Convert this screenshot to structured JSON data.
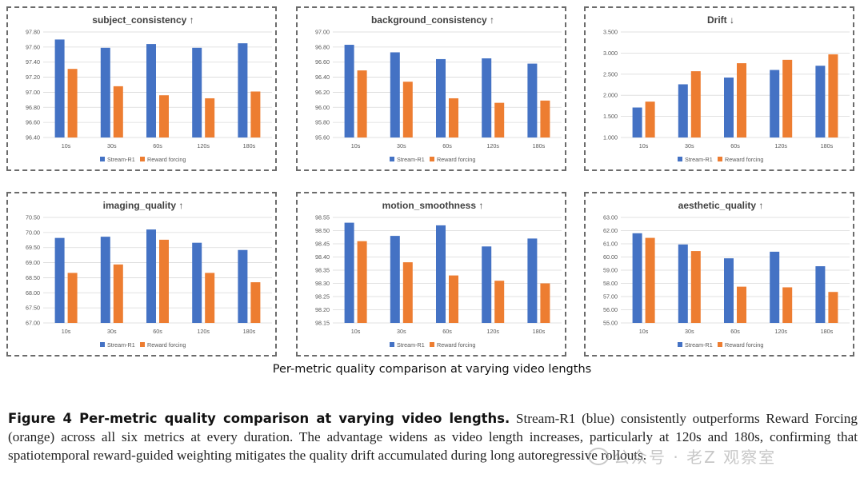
{
  "colors": {
    "stream": "#4472C4",
    "reward": "#ED7D31",
    "grid": "#d9d9d9",
    "axis_text": "#595959"
  },
  "legend": [
    "Stream-R1",
    "Reward forcing"
  ],
  "chart_data": [
    {
      "type": "bar",
      "title": "subject_consistency ↑",
      "categories": [
        "10s",
        "30s",
        "60s",
        "120s",
        "180s"
      ],
      "series": [
        {
          "name": "Stream-R1",
          "values": [
            97.7,
            97.59,
            97.64,
            97.59,
            97.65
          ]
        },
        {
          "name": "Reward forcing",
          "values": [
            97.31,
            97.08,
            96.96,
            96.92,
            97.01
          ]
        }
      ],
      "ylim": [
        96.4,
        97.8
      ],
      "yticks": [
        "97.80",
        "97.60",
        "97.40",
        "97.20",
        "97.00",
        "96.80",
        "96.60",
        "96.40"
      ],
      "grid": true,
      "legend": "bottom"
    },
    {
      "type": "bar",
      "title": "background_consistency ↑",
      "categories": [
        "10s",
        "30s",
        "60s",
        "120s",
        "180s"
      ],
      "series": [
        {
          "name": "Stream-R1",
          "values": [
            96.83,
            96.73,
            96.64,
            96.65,
            96.58
          ]
        },
        {
          "name": "Reward forcing",
          "values": [
            96.49,
            96.34,
            96.12,
            96.06,
            96.09
          ]
        }
      ],
      "ylim": [
        95.6,
        97.0
      ],
      "yticks": [
        "97.00",
        "96.80",
        "96.60",
        "96.40",
        "96.20",
        "96.00",
        "95.80",
        "95.60"
      ],
      "grid": true,
      "legend": "bottom"
    },
    {
      "type": "bar",
      "title": "Drift ↓",
      "categories": [
        "10s",
        "30s",
        "60s",
        "120s",
        "180s"
      ],
      "series": [
        {
          "name": "Stream-R1",
          "values": [
            1.71,
            2.26,
            2.42,
            2.6,
            2.7
          ]
        },
        {
          "name": "Reward forcing",
          "values": [
            1.85,
            2.57,
            2.76,
            2.84,
            2.97
          ]
        }
      ],
      "ylim": [
        1.0,
        3.5
      ],
      "yticks": [
        "3.500",
        "3.000",
        "2.500",
        "2.000",
        "1.500",
        "1.000"
      ],
      "grid": true,
      "legend": "bottom"
    },
    {
      "type": "bar",
      "title": "imaging_quality ↑",
      "categories": [
        "10s",
        "30s",
        "60s",
        "120s",
        "180s"
      ],
      "series": [
        {
          "name": "Stream-R1",
          "values": [
            69.82,
            69.86,
            70.1,
            69.66,
            69.42
          ]
        },
        {
          "name": "Reward forcing",
          "values": [
            68.66,
            68.94,
            69.76,
            68.66,
            68.35
          ]
        }
      ],
      "ylim": [
        67.0,
        70.5
      ],
      "yticks": [
        "70.50",
        "70.00",
        "69.50",
        "69.00",
        "68.50",
        "68.00",
        "67.50",
        "67.00"
      ],
      "grid": true,
      "legend": "bottom"
    },
    {
      "type": "bar",
      "title": "motion_smoothness ↑",
      "categories": [
        "10s",
        "30s",
        "60s",
        "120s",
        "180s"
      ],
      "series": [
        {
          "name": "Stream-R1",
          "values": [
            98.53,
            98.48,
            98.52,
            98.44,
            98.47
          ]
        },
        {
          "name": "Reward forcing",
          "values": [
            98.46,
            98.38,
            98.33,
            98.31,
            98.3
          ]
        }
      ],
      "ylim": [
        98.15,
        98.55
      ],
      "yticks": [
        "98.55",
        "98.50",
        "98.45",
        "98.40",
        "98.35",
        "98.30",
        "98.25",
        "98.20",
        "98.15"
      ],
      "grid": true,
      "legend": "bottom"
    },
    {
      "type": "bar",
      "title": "aesthetic_quality ↑",
      "categories": [
        "10s",
        "30s",
        "60s",
        "120s",
        "180s"
      ],
      "series": [
        {
          "name": "Stream-R1",
          "values": [
            61.8,
            60.95,
            59.9,
            60.4,
            59.3
          ]
        },
        {
          "name": "Reward forcing",
          "values": [
            61.45,
            60.45,
            57.75,
            57.7,
            57.35
          ]
        }
      ],
      "ylim": [
        55.0,
        63.0
      ],
      "yticks": [
        "63.00",
        "62.00",
        "61.00",
        "60.00",
        "59.00",
        "58.00",
        "57.00",
        "56.00",
        "55.00"
      ],
      "grid": true,
      "legend": "bottom"
    }
  ],
  "figure_subtitle": "Per-metric quality comparison at varying video lengths",
  "caption": {
    "head": "Figure 4  Per-metric quality comparison at varying video lengths.",
    "body": " Stream-R1 (blue) consistently outperforms Reward Forcing (orange) across all six metrics at every duration. The advantage widens as video length increases, particularly at 120s and 180s, confirming that spatiotemporal reward-guided weighting mitigates the quality drift accumulated during long autoregressive rollouts."
  },
  "watermark": "公众号 · 老Z 观察室"
}
